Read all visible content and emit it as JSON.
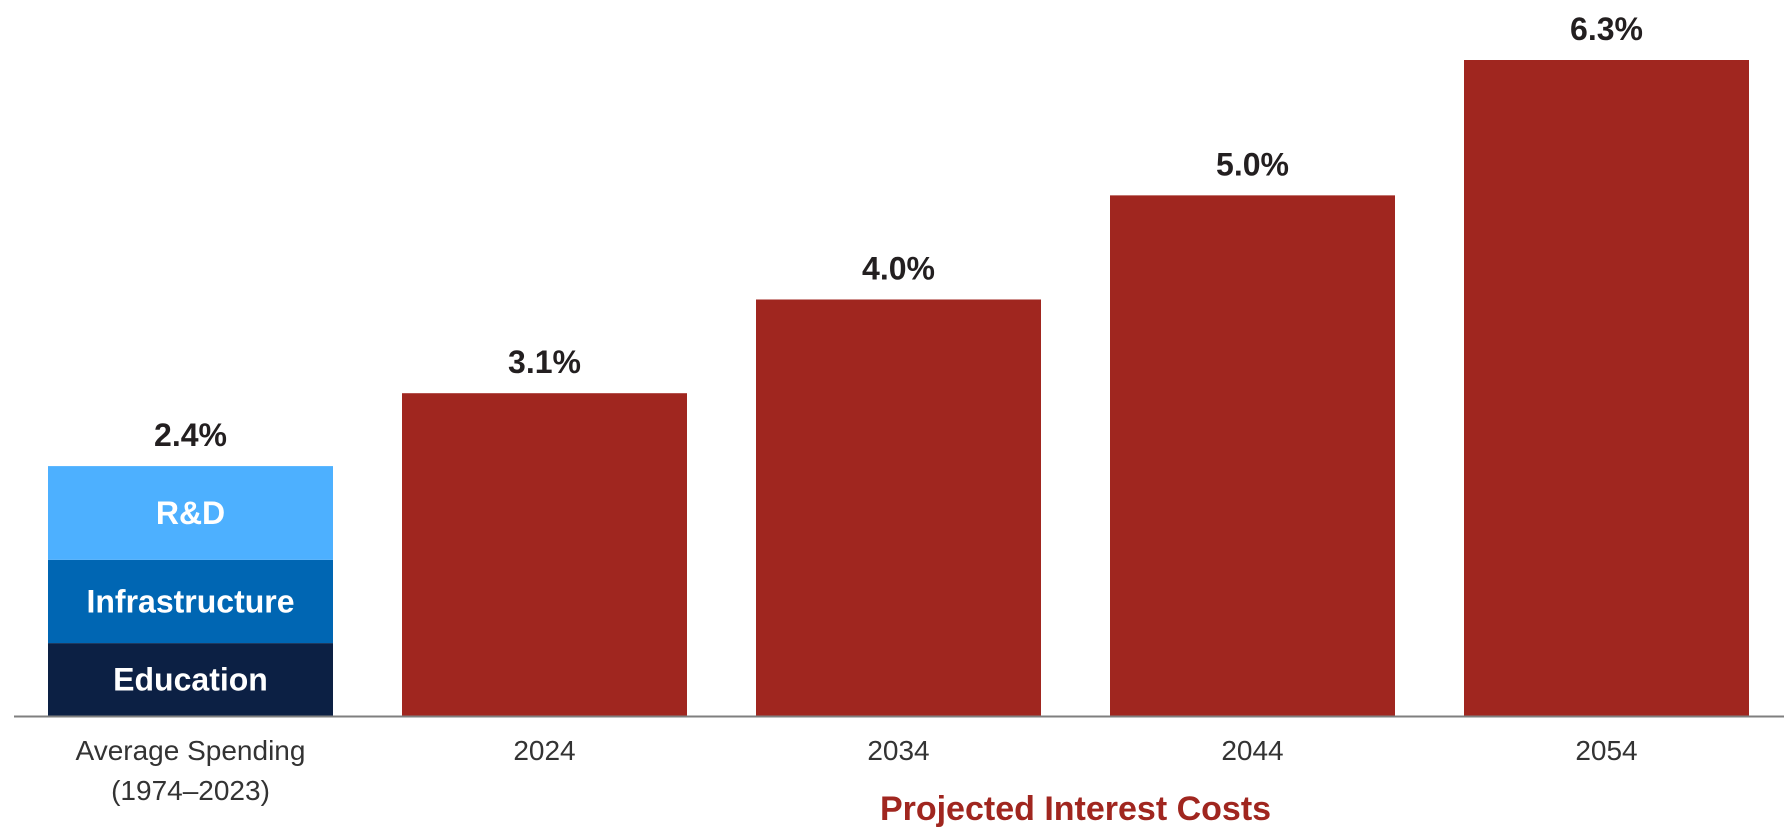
{
  "chart_data": {
    "type": "bar",
    "title": "",
    "xlabel": "",
    "ylabel": "",
    "ylim": [
      0,
      6.3
    ],
    "grid": false,
    "legend": "none",
    "stacked_bar": {
      "category_lines": [
        "Average Spending",
        "(1974–2023)"
      ],
      "total": 2.4,
      "total_label": "2.4%",
      "segments": [
        {
          "name": "Education",
          "value": 0.7,
          "color": "#0c2044"
        },
        {
          "name": "Infrastructure",
          "value": 0.8,
          "color": "#0066b3"
        },
        {
          "name": "R&D",
          "value": 0.9,
          "color": "#4db0ff"
        }
      ]
    },
    "group_label": "Projected Interest Costs",
    "group_label_color": "#a0261f",
    "bars": [
      {
        "category": "2024",
        "value": 3.1,
        "label": "3.1%",
        "color": "#a0261f"
      },
      {
        "category": "2034",
        "value": 4.0,
        "label": "4.0%",
        "color": "#a0261f"
      },
      {
        "category": "2044",
        "value": 5.0,
        "label": "5.0%",
        "color": "#a0261f"
      },
      {
        "category": "2054",
        "value": 6.3,
        "label": "6.3%",
        "color": "#a0261f"
      }
    ],
    "axis_color": "#7f7f7f"
  }
}
